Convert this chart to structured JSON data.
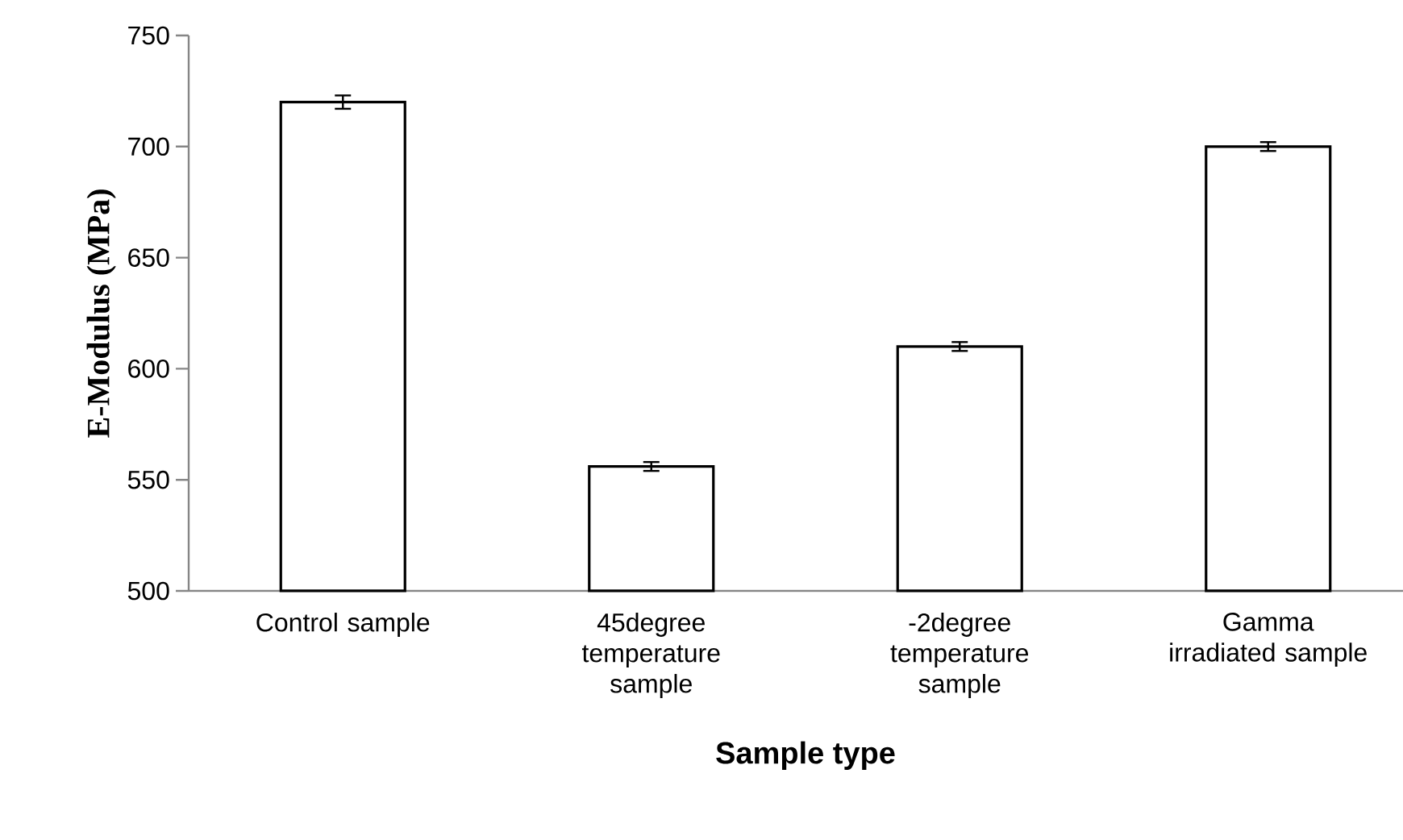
{
  "chart_data": {
    "type": "bar",
    "xlabel": "Sample type",
    "ylabel": "E-Modulus (MPa)",
    "categories": [
      "Control sample",
      "45degree temperature sample",
      "-2degree temperature sample",
      "Gamma irradiated sample"
    ],
    "values": [
      720,
      556,
      610,
      700
    ],
    "errors": [
      3,
      2,
      2,
      2
    ],
    "color": "#ffffff",
    "ylim": [
      500,
      750
    ],
    "yticks": [
      500,
      550,
      600,
      650,
      700,
      750
    ]
  }
}
